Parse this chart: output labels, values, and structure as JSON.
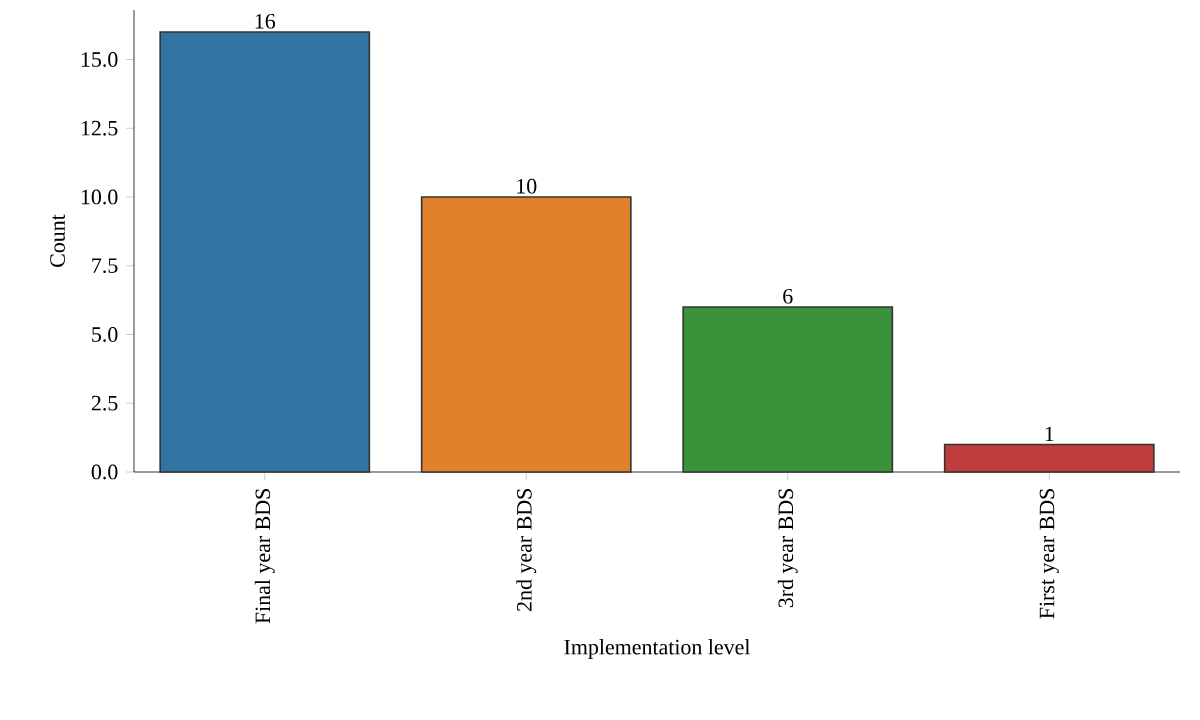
{
  "chart_data": {
    "type": "bar",
    "xlabel": "Implementation level",
    "ylabel": "Count",
    "categories": [
      "Final year BDS",
      "2nd year BDS",
      "3rd year BDS",
      "First year BDS"
    ],
    "values": [
      16,
      10,
      6,
      1
    ],
    "colors": [
      "#3274a1",
      "#e1812c",
      "#3a923a",
      "#c03d3e"
    ],
    "ylim": [
      0,
      16.8
    ],
    "yticks": [
      {
        "value": 0,
        "label": "0.0"
      },
      {
        "value": 2.5,
        "label": "2.5"
      },
      {
        "value": 5,
        "label": "5.0"
      },
      {
        "value": 7.5,
        "label": "7.5"
      },
      {
        "value": 10,
        "label": "10.0"
      },
      {
        "value": 12.5,
        "label": "12.5"
      },
      {
        "value": 15,
        "label": "15.0"
      }
    ],
    "data_labels": true,
    "grid": false
  }
}
